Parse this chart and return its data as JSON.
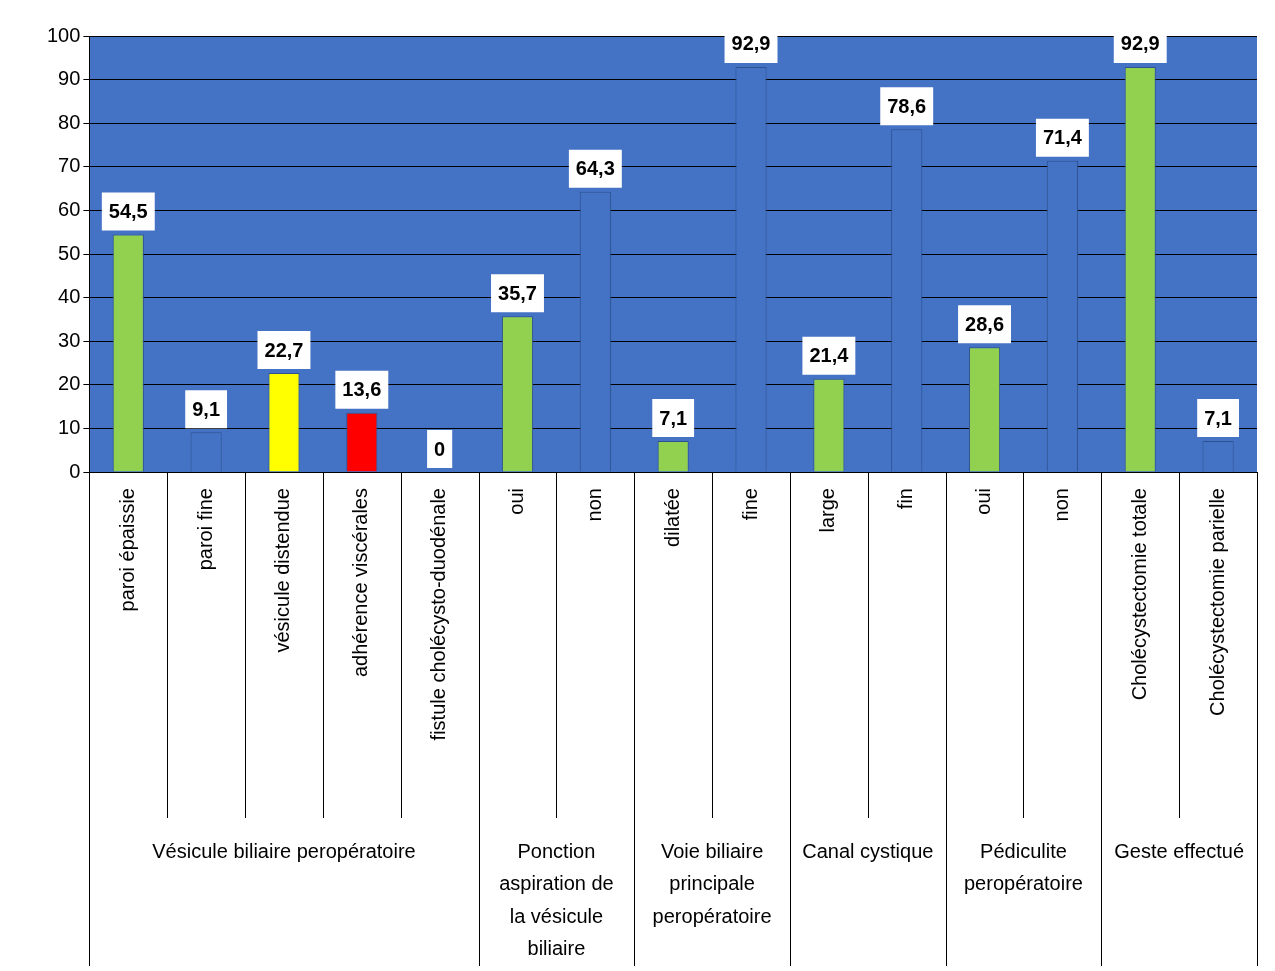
{
  "chart_data": {
    "type": "bar",
    "categories": [
      "paroi épaissie",
      "paroi fine",
      "vésicule distendue",
      "adhérence viscérales",
      "fistule cholécysto-duodénale",
      "oui",
      "non",
      "dilatée",
      "fine",
      "large",
      "fin",
      "oui",
      "non",
      "Cholécystectomie totale",
      "Cholécystectomie parielle"
    ],
    "values": [
      54.5,
      9.1,
      22.7,
      13.6,
      0,
      35.7,
      64.3,
      7.1,
      92.9,
      21.4,
      78.6,
      28.6,
      71.4,
      92.9,
      7.1
    ],
    "colors": [
      "#92d050",
      "#4472c4",
      "#ffff00",
      "#ff0000",
      "#4472c4",
      "#92d050",
      "#4472c4",
      "#92d050",
      "#4472c4",
      "#92d050",
      "#4472c4",
      "#92d050",
      "#4472c4",
      "#92d050",
      "#4472c4"
    ],
    "ylim": [
      0,
      100
    ],
    "yticks": [
      0,
      10,
      20,
      30,
      40,
      50,
      60,
      70,
      80,
      90,
      100
    ],
    "grid": "y",
    "legend": false,
    "value_labels": [
      "54,5",
      "9,1",
      "22,7",
      "13,6",
      "0",
      "35,7",
      "64,3",
      "7,1",
      "92,9",
      "21,4",
      "78,6",
      "28,6",
      "71,4",
      "92,9",
      "7,1"
    ],
    "annotations": [
      "Vésicule biliaire peropératoire",
      "Ponction aspiration de la vésicule biliaire",
      "Voie biliaire principale peropératoire",
      "Canal cystique",
      "Pédiculite peropératoire",
      "Geste effectué"
    ]
  }
}
